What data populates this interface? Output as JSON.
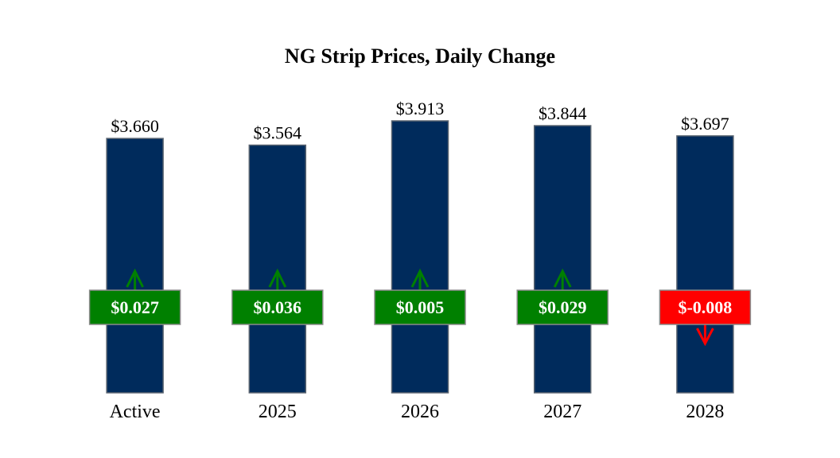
{
  "chart_data": {
    "type": "bar",
    "title": "NG Strip Prices, Daily Change",
    "xlabel": "",
    "ylabel": "",
    "categories": [
      "Active",
      "2025",
      "2026",
      "2027",
      "2028"
    ],
    "values": [
      3.66,
      3.564,
      3.913,
      3.844,
      3.697
    ],
    "value_labels": [
      "$3.660",
      "$3.564",
      "$3.913",
      "$3.844",
      "$3.697"
    ],
    "changes": [
      0.027,
      0.036,
      0.005,
      0.029,
      -0.008
    ],
    "change_labels": [
      "$0.027",
      "$0.036",
      "$0.005",
      "$0.029",
      "$-0.008"
    ],
    "ylim": [
      0,
      3.913
    ],
    "grid": false,
    "legend": "none",
    "colors": {
      "bar": "#002b5c",
      "bar_edge": "#5a6470",
      "up": "#008000",
      "down": "#ff0000"
    }
  }
}
